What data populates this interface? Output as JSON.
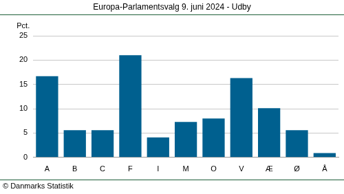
{
  "chart_data": {
    "type": "bar",
    "title": "Europa-Parlamentsvalg 9. juni 2024 - Udby",
    "y_label": "Pct.",
    "source": "© Danmarks Statistik",
    "categories": [
      "A",
      "B",
      "C",
      "F",
      "I",
      "M",
      "O",
      "V",
      "Æ",
      "Ø",
      "Å"
    ],
    "values": [
      16.7,
      5.6,
      5.6,
      21.0,
      4.1,
      7.3,
      8.0,
      16.3,
      10.1,
      5.6,
      0.9
    ],
    "color": "#00608f",
    "ylim": [
      0,
      25
    ],
    "yticks": [
      0,
      5,
      10,
      15,
      20,
      25
    ],
    "grid": true
  }
}
